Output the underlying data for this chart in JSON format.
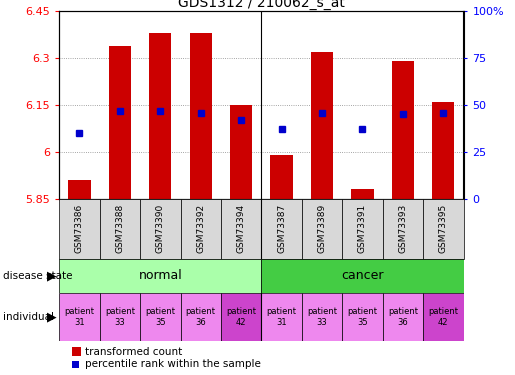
{
  "title": "GDS1312 / 210062_s_at",
  "samples": [
    "GSM73386",
    "GSM73388",
    "GSM73390",
    "GSM73392",
    "GSM73394",
    "GSM73387",
    "GSM73389",
    "GSM73391",
    "GSM73393",
    "GSM73395"
  ],
  "transformed_counts": [
    5.91,
    6.34,
    6.38,
    6.38,
    6.15,
    5.99,
    6.32,
    5.88,
    6.29,
    6.16
  ],
  "percentile_ranks": [
    35,
    47,
    47,
    46,
    42,
    37,
    46,
    37,
    45,
    46
  ],
  "ylim_left": [
    5.85,
    6.45
  ],
  "ylim_right": [
    0,
    100
  ],
  "yticks_left": [
    5.85,
    6.0,
    6.15,
    6.3,
    6.45
  ],
  "yticks_right": [
    0,
    25,
    50,
    75,
    100
  ],
  "ytick_labels_left": [
    "5.85",
    "6",
    "6.15",
    "6.3",
    "6.45"
  ],
  "ytick_labels_right": [
    "0",
    "25",
    "50",
    "75",
    "100%"
  ],
  "disease_states": [
    "normal",
    "normal",
    "normal",
    "normal",
    "normal",
    "cancer",
    "cancer",
    "cancer",
    "cancer",
    "cancer"
  ],
  "individuals": [
    "patient\n31",
    "patient\n33",
    "patient\n35",
    "patient\n36",
    "patient\n42",
    "patient\n31",
    "patient\n33",
    "patient\n35",
    "patient\n36",
    "patient\n42"
  ],
  "bar_color": "#cc0000",
  "dot_color": "#0000cc",
  "baseline": 5.85,
  "normal_color": "#aaffaa",
  "cancer_color": "#44cc44",
  "individual_colors": [
    "#ee88ee",
    "#ee88ee",
    "#ee88ee",
    "#ee88ee",
    "#cc44cc",
    "#ee88ee",
    "#ee88ee",
    "#ee88ee",
    "#ee88ee",
    "#cc44cc"
  ],
  "grid_color": "#888888",
  "label_disease": "disease state",
  "label_individual": "individual",
  "legend_label_bar": "transformed count",
  "legend_label_dot": "percentile rank within the sample"
}
